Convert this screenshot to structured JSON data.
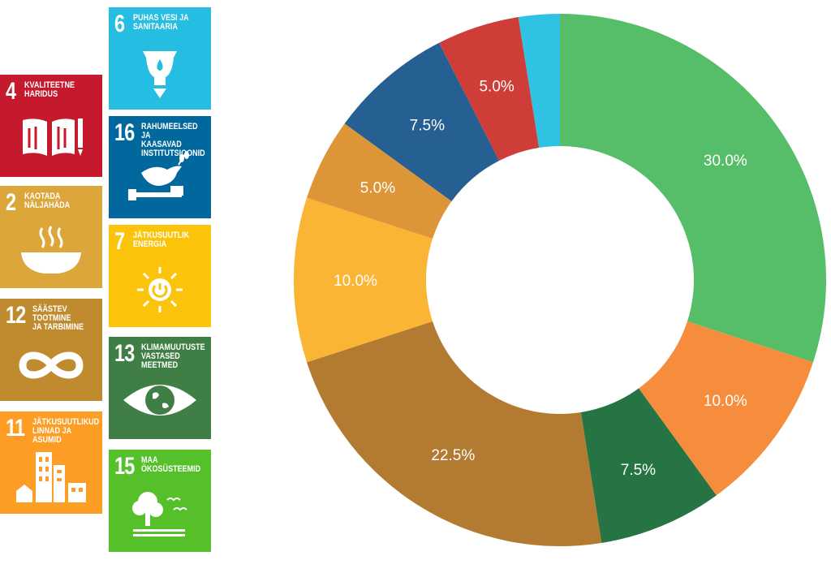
{
  "goals": [
    {
      "number": "6",
      "title": "PUHAS VESI JA\nSANITAARIA",
      "color": "#26bde2",
      "icon": "water-tap-icon"
    },
    {
      "number": "4",
      "title": "KVALITEETNE\nHARIDUS",
      "color": "#c5192d",
      "icon": "book-pencil-icon"
    },
    {
      "number": "16",
      "title": "RAHUMEELSED JA\nKAASAVAD\nINSTITUTSIOONID",
      "color": "#00689d",
      "icon": "dove-gavel-icon"
    },
    {
      "number": "2",
      "title": "KAOTADA\nNÄLJAHÄDA",
      "color": "#dda63a",
      "icon": "bowl-steam-icon"
    },
    {
      "number": "7",
      "title": "JÄTKUSUUTLIK\nENERGIA",
      "color": "#fcc30b",
      "icon": "sun-power-icon"
    },
    {
      "number": "12",
      "title": "SÄÄSTEV TOOTMINE\nJA TARBIMINE",
      "color": "#bf8b2e",
      "icon": "infinity-icon"
    },
    {
      "number": "13",
      "title": "KLIMAMUUTUSTE\nVASTASED MEETMED",
      "color": "#3f7e44",
      "icon": "eye-globe-icon"
    },
    {
      "number": "11",
      "title": "JÄTKUSUUTLIKUD\nLINNAD JA ASUMID",
      "color": "#fd9d24",
      "icon": "buildings-icon"
    },
    {
      "number": "15",
      "title": "MAA\nÖKOSÜSTEEMID",
      "color": "#56c02b",
      "icon": "tree-birds-icon"
    }
  ],
  "chart_data": {
    "type": "pie",
    "style": "donut",
    "slices": [
      {
        "value": 30.0,
        "label": "30.0%",
        "color": "#56bd68"
      },
      {
        "value": 10.0,
        "label": "10.0%",
        "color": "#f58d3d"
      },
      {
        "value": 7.5,
        "label": "7.5%",
        "color": "#267444"
      },
      {
        "value": 22.5,
        "label": "22.5%",
        "color": "#b37a31"
      },
      {
        "value": 10.0,
        "label": "10.0%",
        "color": "#fbb534"
      },
      {
        "value": 5.0,
        "label": "5.0%",
        "color": "#dc9638"
      },
      {
        "value": 7.5,
        "label": "7.5%",
        "color": "#265f91"
      },
      {
        "value": 5.0,
        "label": "5.0%",
        "color": "#cf3d39"
      },
      {
        "value": 2.5,
        "label": "",
        "color": "#2ec3e3"
      }
    ]
  }
}
